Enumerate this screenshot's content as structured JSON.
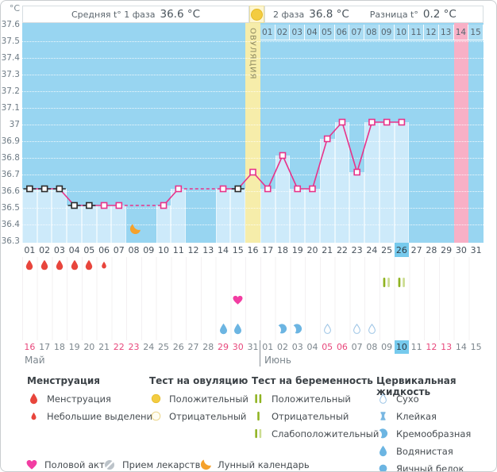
{
  "header": {
    "unit": "°C",
    "phase1_label": "Средняя t° 1 фаза",
    "phase1_value": "36.6 °C",
    "phase2_label": "2 фаза",
    "phase2_value": "36.8 °C",
    "diff_label": "Разница t°",
    "diff_value": "0.2 °C"
  },
  "chart_data": {
    "type": "line",
    "title": "",
    "ylabel": "°C",
    "ylim": [
      36.3,
      37.6
    ],
    "ytick_step": 0.1,
    "yticks": [
      "37.6",
      "37.5",
      "37.4",
      "37.3",
      "37.2",
      "37.1",
      "37",
      "36.9",
      "36.8",
      "36.7",
      "36.6",
      "36.5",
      "36.4",
      "36.3"
    ],
    "grid": "dotted-white-horizontal",
    "cycle_days": [
      "01",
      "02",
      "03",
      "04",
      "05",
      "06",
      "07",
      "08",
      "09",
      "10",
      "11",
      "12",
      "13",
      "14",
      "15",
      "16",
      "17",
      "18",
      "19",
      "20",
      "21",
      "22",
      "23",
      "24",
      "25",
      "26",
      "27",
      "28",
      "29",
      "30",
      "31"
    ],
    "series": [
      {
        "name": "Базальная температура",
        "values": [
          36.6,
          36.6,
          36.6,
          36.5,
          36.5,
          36.5,
          36.5,
          null,
          null,
          36.5,
          36.6,
          null,
          null,
          36.6,
          36.6,
          36.7,
          36.6,
          36.8,
          36.6,
          36.6,
          36.9,
          37.0,
          36.7,
          37.0,
          37.0,
          37.0,
          null,
          null,
          null,
          null,
          null
        ],
        "marker_styles": [
          "black",
          "black",
          "black",
          "black",
          "black",
          "pink",
          "pink",
          null,
          null,
          "pink",
          "pink",
          null,
          null,
          "pink",
          "black",
          "pink",
          "pink",
          "pink",
          "pink",
          "pink",
          "pink",
          "pink",
          "pink",
          "pink",
          "pink",
          "pink",
          null,
          null,
          null,
          null,
          null
        ]
      }
    ],
    "ovulation_label": "ОВУЛЯЦИЯ",
    "ovulation_day": 16,
    "expected_period_day": 30,
    "current_cycle_day": 26,
    "top_dates": [
      "01",
      "02",
      "03",
      "04",
      "05",
      "06",
      "07",
      "08",
      "09",
      "10",
      "11",
      "12",
      "13",
      "14",
      "15"
    ],
    "top_dates_start_day": 17,
    "top_date_pink": "14"
  },
  "events": {
    "menstruation_days": [
      1,
      2,
      3,
      4,
      5
    ],
    "spotting_days": [
      6
    ],
    "lunar_day": 8,
    "intercourse_days": [
      15
    ],
    "pregnancy_test_weak_days": [
      25,
      26
    ],
    "fluid_watery_days": [
      14,
      15
    ],
    "fluid_creamy_days": [
      18,
      19
    ],
    "fluid_dry_days": [
      21,
      23,
      24
    ]
  },
  "calendar": {
    "may_label": "Май",
    "june_label": "Июнь",
    "may_dates": [
      "16",
      "17",
      "18",
      "19",
      "20",
      "21",
      "22",
      "23",
      "24",
      "25",
      "26",
      "27",
      "28",
      "29",
      "30",
      "31"
    ],
    "may_weekends": [
      "16",
      "22",
      "23",
      "29",
      "30"
    ],
    "june_dates": [
      "01",
      "02",
      "03",
      "04",
      "05",
      "06",
      "07",
      "08",
      "09",
      "10",
      "11",
      "12",
      "13",
      "14",
      "15"
    ],
    "june_weekends": [
      "05",
      "06",
      "12",
      "13"
    ],
    "june_current": "10"
  },
  "legend": {
    "sections": [
      {
        "heading": "Менструация",
        "items": [
          {
            "icon": "drop-red",
            "label": "Менструация"
          },
          {
            "icon": "drop-red-small",
            "label": "Небольшие выделения"
          }
        ]
      },
      {
        "heading": "Тест на овуляцию",
        "items": [
          {
            "icon": "circle-yellow",
            "label": "Положительный"
          },
          {
            "icon": "circle-yellow-outline",
            "label": "Отрицательный"
          }
        ]
      },
      {
        "heading": "Тест на беременность",
        "items": [
          {
            "icon": "bars-positive",
            "label": "Положительный"
          },
          {
            "icon": "bar-negative",
            "label": "Отрицательный"
          },
          {
            "icon": "bars-weak",
            "label": "Слабоположительный"
          }
        ]
      },
      {
        "heading": "Цервикальная жидкость",
        "items": [
          {
            "icon": "drop-outline-blue",
            "label": "Сухо"
          },
          {
            "icon": "ibeam-blue",
            "label": "Клейкая"
          },
          {
            "icon": "comma-blue",
            "label": "Кремообразная"
          },
          {
            "icon": "drop-blue",
            "label": "Водянистая"
          },
          {
            "icon": "circle-blue",
            "label": "Яичный белок"
          }
        ]
      }
    ],
    "misc": [
      {
        "icon": "heart-pink",
        "label": "Половой акт"
      },
      {
        "icon": "pill-gray",
        "label": "Прием лекарств"
      },
      {
        "icon": "moon-orange",
        "label": "Лунный календарь"
      }
    ]
  },
  "colors": {
    "plot_bg": "#98d5f1",
    "bar_fill": "#cdeafa",
    "line_pink": "#e8338a",
    "marker_black": "#2b2b2b",
    "ovulation_band": "#f6edaa",
    "period_band": "#f8b0c6",
    "current_day_bg": "#76caed",
    "weekend_red": "#e8487c",
    "menstruation_red": "#e8453c",
    "heart_pink": "#f23da2",
    "moon_orange": "#f5a12b",
    "test_green_dark": "#8fb321",
    "test_green_light": "#cbdc90",
    "fluid_blue": "#6cb5e2",
    "ovulation_test_yellow": "#f3cc41"
  }
}
